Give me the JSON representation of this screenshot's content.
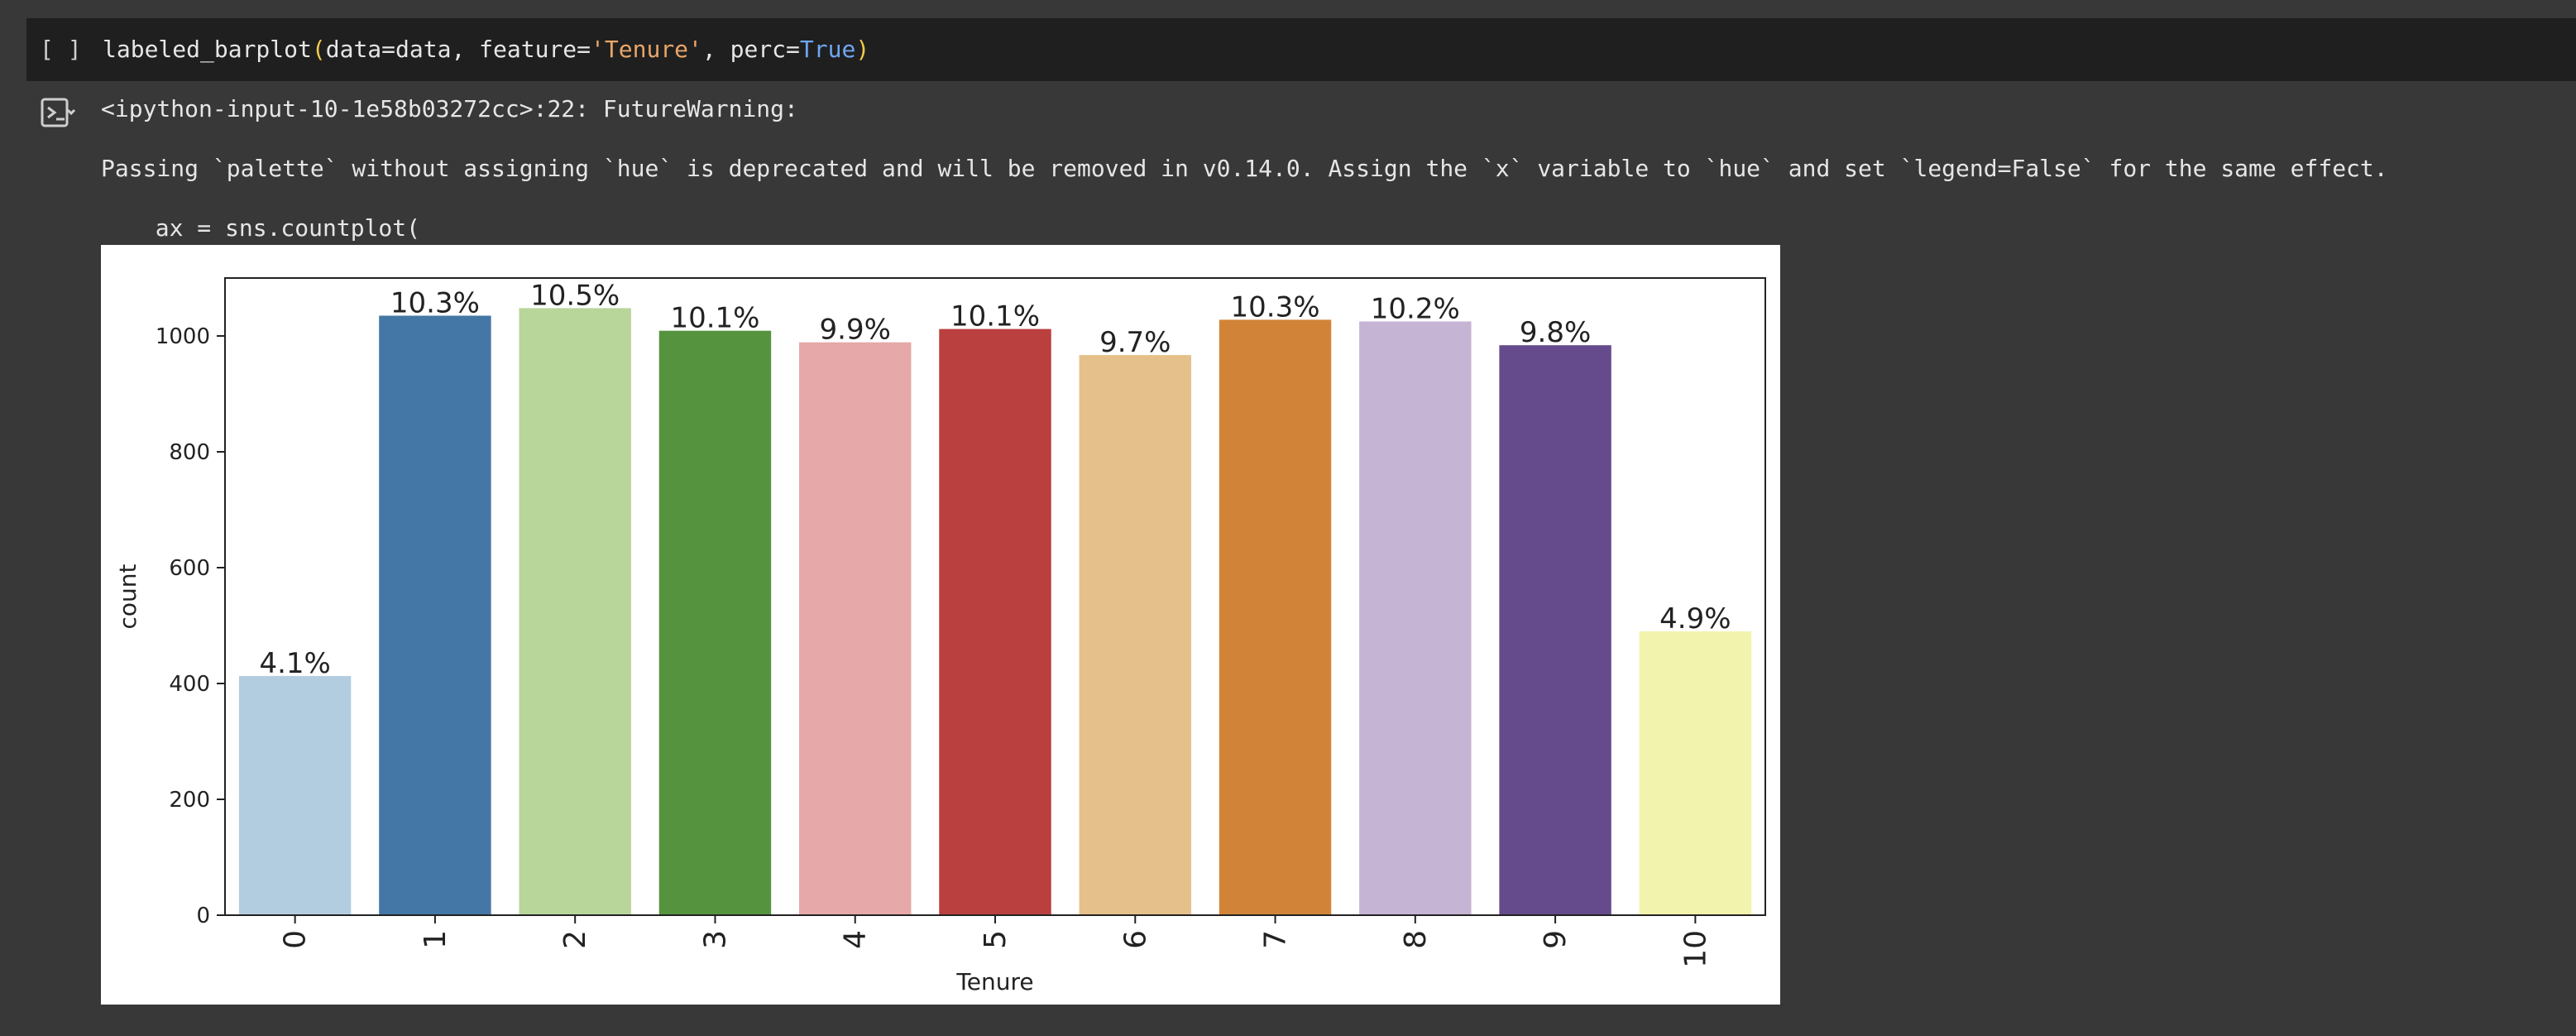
{
  "cell": {
    "run_indicator": "[ ]",
    "code": {
      "function_name": "labeled_barplot",
      "open_paren": "(",
      "arg1": "data=data, feature=",
      "feature_value": "'Tenure'",
      "arg2": ", perc=",
      "perc_value": "True",
      "close_paren": ")"
    }
  },
  "output": {
    "toggle_icon": "output-toggle-icon",
    "warning_header": "<ipython-input-10-1e58b03272cc>:22: FutureWarning:",
    "warning_message": "Passing `palette` without assigning `hue` is deprecated and will be removed in v0.14.0. Assign the `x` variable to `hue` and set `legend=False` for the same effect.",
    "warning_code": "  ax = sns.countplot("
  },
  "chart_data": {
    "type": "bar",
    "xlabel": "Tenure",
    "ylabel": "count",
    "categories": [
      "0",
      "1",
      "2",
      "3",
      "4",
      "5",
      "6",
      "7",
      "8",
      "9",
      "10"
    ],
    "values": [
      413,
      1035,
      1048,
      1009,
      989,
      1012,
      967,
      1028,
      1025,
      984,
      490
    ],
    "bar_labels": [
      "4.1%",
      "10.3%",
      "10.5%",
      "10.1%",
      "9.9%",
      "10.1%",
      "9.7%",
      "10.3%",
      "10.2%",
      "9.8%",
      "4.9%"
    ],
    "colors": [
      "#b3cde0",
      "#4477a5",
      "#b8d59a",
      "#56933f",
      "#e6a8a8",
      "#ba3f3f",
      "#e5c08a",
      "#d18438",
      "#c5b4d3",
      "#654b8c",
      "#f2f3ad"
    ],
    "yticks": [
      0,
      200,
      400,
      600,
      800,
      1000
    ],
    "ylim": [
      0,
      1100
    ],
    "grid": false,
    "x_tick_rotation": 90
  }
}
